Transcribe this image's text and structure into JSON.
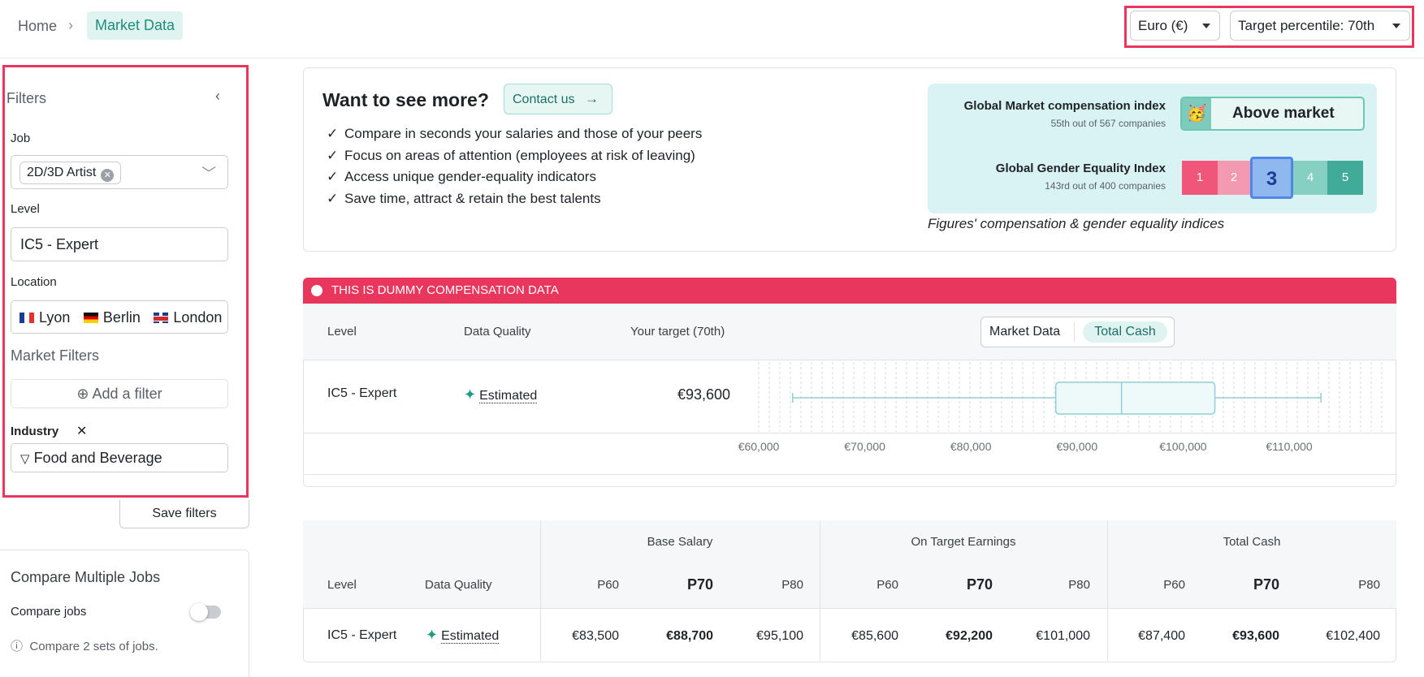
{
  "breadcrumb": {
    "home": "Home",
    "separator": "›",
    "current": "Market Data"
  },
  "header": {
    "currency": "Euro (€)",
    "percentile": "Target percentile: 70th"
  },
  "filters": {
    "title": "Filters",
    "collapse_icon": "chevron-left-icon",
    "job_label": "Job",
    "job_value": "2D/3D Artist",
    "level_label": "Level",
    "level_value": "IC5 - Expert",
    "location_label": "Location",
    "locations": [
      "Lyon",
      "Berlin",
      "London"
    ],
    "market_filters_label": "Market Filters",
    "add_filter": "Add a filter",
    "industry_label": "Industry",
    "industry_value": "Food and Beverage",
    "save": "Save filters"
  },
  "compare": {
    "title": "Compare Multiple Jobs",
    "toggle_label": "Compare jobs",
    "hint": "Compare 2 sets of jobs."
  },
  "promo": {
    "title": "Want to see more?",
    "contact": "Contact us",
    "bullets": [
      "Compare in seconds your salaries and those of your peers",
      "Focus on areas of attention (employees at risk of leaving)",
      "Access unique gender-equality indicators",
      "Save time, attract & retain the best talents"
    ],
    "comp_index_label": "Global Market compensation index",
    "comp_index_sub": "55th out of 567 companies",
    "comp_index_value": "Above market",
    "gender_index_label": "Global Gender Equality Index",
    "gender_index_sub": "143rd out of 400 companies",
    "gender_scale": [
      "1",
      "2",
      "3",
      "4",
      "5"
    ],
    "gender_selected": 3,
    "caption": "Figures' compensation & gender equality indices"
  },
  "chart_card": {
    "banner": "THIS IS DUMMY COMPENSATION DATA",
    "headers": {
      "level": "Level",
      "quality": "Data Quality",
      "target": "Your target (70th)"
    },
    "toggle": {
      "a": "Market Data",
      "b": "Total Cash"
    },
    "row": {
      "level": "IC5 - Expert",
      "quality": "Estimated",
      "target": "€93,600"
    }
  },
  "chart_data": {
    "type": "box",
    "ticks": [
      "€60,000",
      "€70,000",
      "€80,000",
      "€90,000",
      "€100,000",
      "€110,000"
    ],
    "tick_values": [
      60000,
      70000,
      80000,
      90000,
      100000,
      110000
    ],
    "box": {
      "min": 63200,
      "q1": 88000,
      "median": 94200,
      "q3": 103000,
      "max": 113000
    }
  },
  "table": {
    "headers": {
      "level": "Level",
      "quality": "Data Quality"
    },
    "groups": [
      "Base Salary",
      "On Target Earnings",
      "Total Cash"
    ],
    "percentiles": [
      "P60",
      "P70",
      "P80"
    ],
    "row": {
      "level": "IC5 - Expert",
      "quality": "Estimated",
      "values": [
        "€83,500",
        "€88,700",
        "€95,100",
        "€85,600",
        "€92,200",
        "€101,000",
        "€87,400",
        "€93,600",
        "€102,400"
      ]
    }
  },
  "colors": {
    "accent": "#1e8d7c",
    "alert": "#e8365d",
    "gender_scale": [
      "#f0557a",
      "#f49ab0",
      "#8fb8ef",
      "#86cfc3",
      "#3fab98"
    ]
  }
}
